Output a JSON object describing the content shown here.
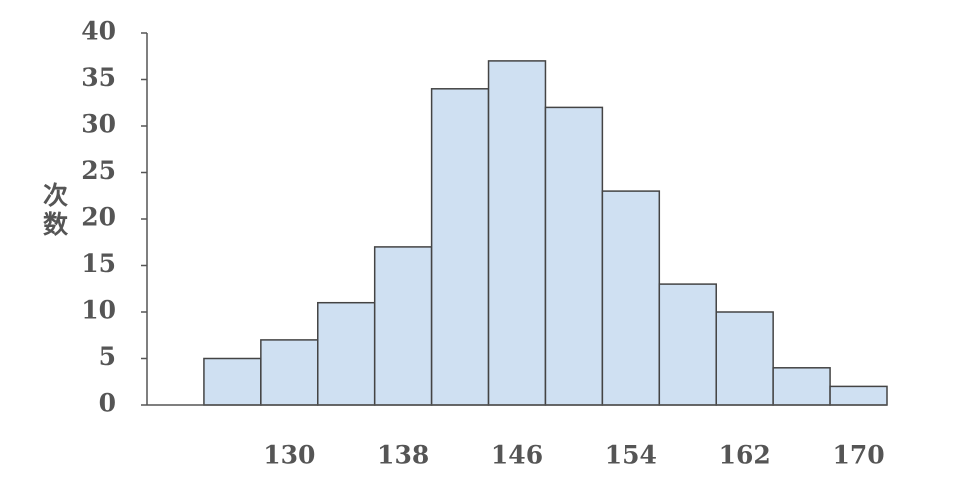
{
  "chart_data": {
    "type": "histogram",
    "y_label": "次数",
    "bins": [
      124,
      128,
      132,
      136,
      140,
      144,
      148,
      152,
      156,
      160,
      164,
      168,
      172
    ],
    "values": [
      5,
      7,
      11,
      17,
      34,
      37,
      32,
      23,
      13,
      10,
      4,
      2
    ],
    "color": "#cfe0f2",
    "xlim": [
      120,
      172
    ],
    "xticks": [
      130,
      138,
      146,
      154,
      162,
      170
    ],
    "ylim": [
      0,
      40
    ],
    "yticks": [
      0,
      5,
      10,
      15,
      20,
      25,
      30,
      35,
      40
    ]
  }
}
